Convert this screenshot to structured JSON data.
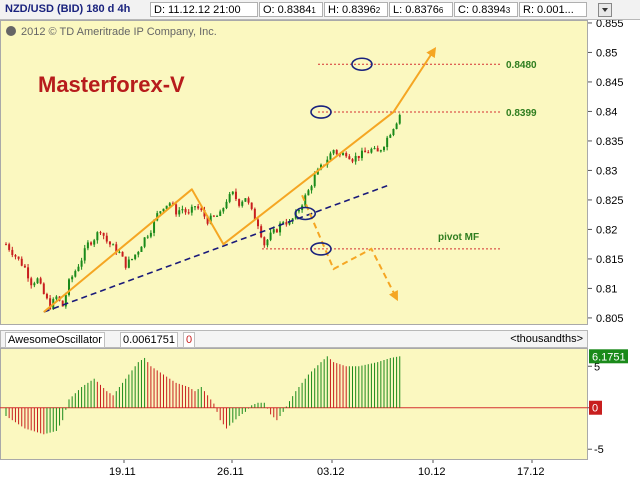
{
  "header": {
    "symbol": "NZD/USD (BID) 180 d 4h",
    "date": "D: 11.12.12 21:00",
    "open_label": "O: 0.8384",
    "open_small": "1",
    "high_label": "H: 0.8396",
    "high_small": "2",
    "low_label": "L: 0.8376",
    "low_small": "6",
    "close_label": "C: 0.8394",
    "close_small": "3",
    "range_label": "R: 0.001..."
  },
  "copyright": "2012 © TD Ameritrade IP Company, Inc.",
  "watermark": "Masterforex-V",
  "colors": {
    "plot_bg": "#fbf8c0",
    "bull": "#1a8a1a",
    "bear": "#c81e1e",
    "trend": "#f5a623",
    "support": "#1a1a7a",
    "level": "#d43030",
    "level_text": "#2e7d1e",
    "watermark": "#b71c1c",
    "ellipse": "#1a237e"
  },
  "chart_data": [
    {
      "type": "candlestick",
      "symbol": "NZD/USD",
      "timeframe": "4h",
      "x_ticks": [
        "19.11",
        "26.11",
        "03.12",
        "10.12",
        "17.12"
      ],
      "y_ticks": [
        "0.855",
        "0.85",
        "0.845",
        "0.84",
        "0.835",
        "0.83",
        "0.825",
        "0.82",
        "0.815",
        "0.81",
        "0.805"
      ],
      "ylim": [
        0.8038,
        0.8555
      ],
      "price_path": [
        [
          0,
          0.8175
        ],
        [
          3,
          0.8155
        ],
        [
          6,
          0.8135
        ],
        [
          8,
          0.811
        ],
        [
          10,
          0.8115
        ],
        [
          12,
          0.809
        ],
        [
          14,
          0.807
        ],
        [
          16,
          0.8085
        ],
        [
          18,
          0.807
        ],
        [
          20,
          0.811
        ],
        [
          22,
          0.813
        ],
        [
          24,
          0.815
        ],
        [
          26,
          0.8175
        ],
        [
          28,
          0.8185
        ],
        [
          30,
          0.82
        ],
        [
          32,
          0.818
        ],
        [
          34,
          0.817
        ],
        [
          36,
          0.816
        ],
        [
          38,
          0.814
        ],
        [
          40,
          0.815
        ],
        [
          42,
          0.8165
        ],
        [
          44,
          0.8185
        ],
        [
          46,
          0.82
        ],
        [
          48,
          0.8225
        ],
        [
          50,
          0.824
        ],
        [
          52,
          0.8245
        ],
        [
          54,
          0.823
        ],
        [
          56,
          0.8235
        ],
        [
          58,
          0.8225
        ],
        [
          60,
          0.824
        ],
        [
          62,
          0.823
        ],
        [
          64,
          0.8215
        ],
        [
          66,
          0.822
        ],
        [
          68,
          0.8225
        ],
        [
          70,
          0.825
        ],
        [
          72,
          0.826
        ],
        [
          74,
          0.8245
        ],
        [
          76,
          0.8255
        ],
        [
          78,
          0.823
        ],
        [
          80,
          0.821
        ],
        [
          82,
          0.8175
        ],
        [
          84,
          0.819
        ],
        [
          86,
          0.82
        ],
        [
          88,
          0.8215
        ],
        [
          90,
          0.821
        ],
        [
          92,
          0.8225
        ],
        [
          94,
          0.8245
        ],
        [
          96,
          0.8265
        ],
        [
          98,
          0.829
        ],
        [
          100,
          0.8305
        ],
        [
          102,
          0.832
        ],
        [
          104,
          0.8335
        ],
        [
          106,
          0.8325
        ],
        [
          108,
          0.833
        ],
        [
          110,
          0.832
        ],
        [
          112,
          0.8325
        ],
        [
          114,
          0.833
        ],
        [
          116,
          0.8335
        ],
        [
          118,
          0.833
        ],
        [
          120,
          0.8345
        ],
        [
          122,
          0.8365
        ],
        [
          124,
          0.8384
        ],
        [
          125,
          0.8394
        ]
      ],
      "last_close": 0.8394,
      "levels": [
        {
          "label": "0.8480",
          "value": 0.848
        },
        {
          "label": "0.8399",
          "value": 0.8399
        },
        {
          "label": "pivot MF",
          "value": 0.8167
        }
      ],
      "trend_line": [
        {
          "bar": 12,
          "price": 0.806
        },
        {
          "bar": 59,
          "price": 0.8268
        },
        {
          "bar": 69,
          "price": 0.8175
        },
        {
          "bar": 123,
          "price": 0.8399
        },
        {
          "bar": 136,
          "price": 0.8505
        }
      ],
      "support_line": [
        {
          "bar": 12,
          "price": 0.806
        },
        {
          "bar": 121,
          "price": 0.8274
        }
      ],
      "forecast_path": [
        {
          "bar": 94,
          "price": 0.8258
        },
        {
          "bar": 104,
          "price": 0.8133
        },
        {
          "bar": 116,
          "price": 0.8167
        },
        {
          "bar": 124,
          "price": 0.8083
        }
      ],
      "ellipses": [
        {
          "bar": 113,
          "price": 0.848
        },
        {
          "bar": 100,
          "price": 0.8399
        },
        {
          "bar": 95,
          "price": 0.8227
        },
        {
          "bar": 100,
          "price": 0.8167
        }
      ]
    },
    {
      "type": "bar",
      "name": "AwesomeOscillator",
      "value_label": "0.0061751",
      "zero_label": "0",
      "units_label": "<thousandths>",
      "last_value_label": "6.1751",
      "y_ticks": [
        "5",
        "0",
        "-5"
      ],
      "ylim": [
        -6.3,
        7.2
      ],
      "wave": [
        [
          0,
          -1.0
        ],
        [
          6,
          -2.5
        ],
        [
          12,
          -3.2
        ],
        [
          16,
          -2.8
        ],
        [
          18,
          -1.5
        ],
        [
          20,
          1.0
        ],
        [
          24,
          2.5
        ],
        [
          28,
          3.5
        ],
        [
          32,
          2.0
        ],
        [
          34,
          1.5
        ],
        [
          38,
          3.5
        ],
        [
          42,
          5.5
        ],
        [
          44,
          6.0
        ],
        [
          46,
          5.0
        ],
        [
          50,
          4.0
        ],
        [
          54,
          3.0
        ],
        [
          58,
          2.5
        ],
        [
          60,
          2.0
        ],
        [
          62,
          2.5
        ],
        [
          64,
          1.5
        ],
        [
          66,
          0.5
        ],
        [
          68,
          -1.5
        ],
        [
          70,
          -2.5
        ],
        [
          72,
          -1.8
        ],
        [
          74,
          -1.0
        ],
        [
          76,
          -0.5
        ],
        [
          78,
          0.3
        ],
        [
          80,
          0.6
        ],
        [
          82,
          0.6
        ],
        [
          84,
          -0.8
        ],
        [
          86,
          -1.5
        ],
        [
          88,
          -0.5
        ],
        [
          90,
          0.8
        ],
        [
          92,
          2.0
        ],
        [
          96,
          4.0
        ],
        [
          100,
          5.5
        ],
        [
          102,
          6.2
        ],
        [
          104,
          5.5
        ],
        [
          108,
          5.0
        ],
        [
          112,
          5.0
        ],
        [
          118,
          5.5
        ],
        [
          122,
          6.0
        ],
        [
          125,
          6.2
        ]
      ]
    }
  ]
}
